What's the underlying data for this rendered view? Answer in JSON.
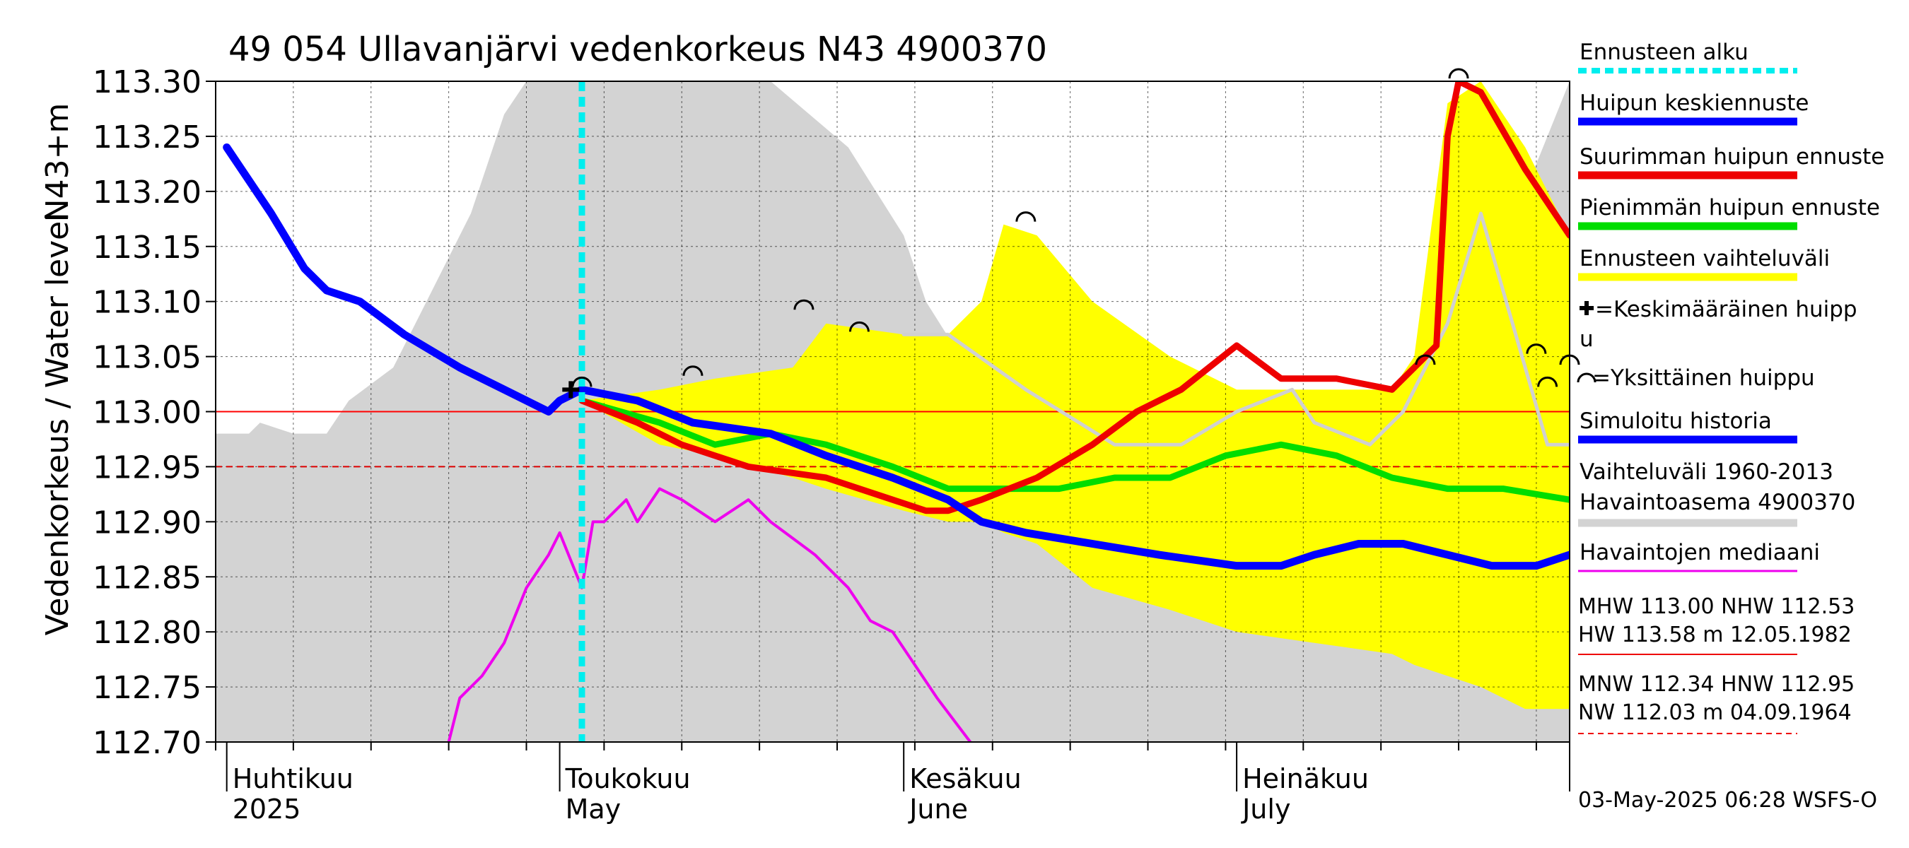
{
  "chart_data": {
    "type": "line",
    "title": "49 054 Ullavanjärvi vedenkorkeus N43 4900370",
    "ylabel": "Vedenkorkeus / Water level",
    "ylabel_unit": "N43+m",
    "ylim": [
      112.7,
      113.3
    ],
    "yticks": [
      "113.30",
      "113.25",
      "113.20",
      "113.15",
      "113.10",
      "113.05",
      "113.00",
      "112.95",
      "112.90",
      "112.85",
      "112.80",
      "112.75",
      "112.70"
    ],
    "ytick_values": [
      113.3,
      113.25,
      113.2,
      113.15,
      113.1,
      113.05,
      113.0,
      112.95,
      112.9,
      112.85,
      112.8,
      112.75,
      112.7
    ],
    "xlim": [
      "2025-04-01",
      "2025-07-31"
    ],
    "month_labels": [
      {
        "date": "2025-04-01",
        "fi": "Huhtikuu",
        "en": "2025"
      },
      {
        "date": "2025-05-01",
        "fi": "Toukokuu",
        "en": "May"
      },
      {
        "date": "2025-06-01",
        "fi": "Kesäkuu",
        "en": "June"
      },
      {
        "date": "2025-07-01",
        "fi": "Heinäkuu",
        "en": "July"
      }
    ],
    "grid": true,
    "legend_position": "right",
    "forecast_start": "2025-05-03",
    "reference_lines": [
      {
        "name": "MHW",
        "value": 113.0,
        "style": "solid",
        "color": "#ff0000"
      },
      {
        "name": "HNW",
        "value": 112.95,
        "style": "dashed",
        "color": "#dd0000"
      }
    ],
    "series": [
      {
        "name": "Vaihteluväli 1960-2013 Havaintoasema 4900370",
        "kind": "band",
        "color": "#d3d3d3",
        "x": [
          "2025-03-31",
          "2025-04-01",
          "2025-04-03",
          "2025-04-04",
          "2025-04-07",
          "2025-04-10",
          "2025-04-12",
          "2025-04-16",
          "2025-04-20",
          "2025-04-23",
          "2025-04-26",
          "2025-04-28",
          "2025-04-30",
          "2025-05-02",
          "2025-05-10",
          "2025-05-20",
          "2025-05-27",
          "2025-06-01",
          "2025-06-03",
          "2025-06-08",
          "2025-06-15",
          "2025-06-25",
          "2025-07-05",
          "2025-07-15",
          "2025-07-20",
          "2025-07-22",
          "2025-07-25",
          "2025-07-27",
          "2025-07-31"
        ],
        "y_high": [
          112.98,
          112.98,
          112.98,
          112.99,
          112.98,
          112.98,
          113.01,
          113.04,
          113.12,
          113.18,
          113.27,
          113.3,
          113.3,
          113.3,
          113.3,
          113.3,
          113.24,
          113.16,
          113.1,
          113.02,
          112.95,
          112.9,
          112.85,
          112.88,
          112.93,
          112.95,
          113.02,
          113.2,
          113.3
        ],
        "y_low": [
          112.7,
          112.7,
          112.7,
          112.7,
          112.7,
          112.7,
          112.7,
          112.7,
          112.7,
          112.7,
          112.7,
          112.7,
          112.7,
          112.7,
          112.7,
          112.7,
          112.7,
          112.7,
          112.7,
          112.7,
          112.7,
          112.7,
          112.7,
          112.7,
          112.7,
          112.7,
          112.7,
          112.7,
          112.7
        ]
      },
      {
        "name": "Ennusteen vaihteluväli",
        "kind": "band",
        "color": "#ffff00",
        "x": [
          "2025-05-03",
          "2025-05-10",
          "2025-05-15",
          "2025-05-22",
          "2025-05-25",
          "2025-06-01",
          "2025-06-05",
          "2025-06-08",
          "2025-06-10",
          "2025-06-13",
          "2025-06-18",
          "2025-06-25",
          "2025-07-01",
          "2025-07-08",
          "2025-07-15",
          "2025-07-17",
          "2025-07-20",
          "2025-07-23",
          "2025-07-27",
          "2025-07-31"
        ],
        "y_high": [
          113.01,
          113.02,
          113.03,
          113.04,
          113.08,
          113.07,
          113.07,
          113.1,
          113.17,
          113.16,
          113.1,
          113.05,
          113.02,
          113.02,
          113.02,
          113.05,
          113.28,
          113.3,
          113.24,
          113.16
        ],
        "y_low": [
          113.01,
          112.97,
          112.96,
          112.94,
          112.93,
          112.91,
          112.9,
          112.9,
          112.89,
          112.88,
          112.84,
          112.82,
          112.8,
          112.79,
          112.78,
          112.77,
          112.76,
          112.75,
          112.73,
          112.73
        ]
      },
      {
        "name": "Ennusteen mediaani (harmaa)",
        "kind": "line",
        "color": "#d0d0d0",
        "x": [
          "2025-06-01",
          "2025-06-05",
          "2025-06-12",
          "2025-06-20",
          "2025-06-26",
          "2025-07-01",
          "2025-07-06",
          "2025-07-08",
          "2025-07-13",
          "2025-07-16",
          "2025-07-20",
          "2025-07-23",
          "2025-07-29",
          "2025-07-31"
        ],
        "y": [
          113.07,
          113.07,
          113.02,
          112.97,
          112.97,
          113.0,
          113.02,
          112.99,
          112.97,
          113.0,
          113.08,
          113.18,
          112.97,
          112.97
        ]
      },
      {
        "name": "Havaintojen mediaani",
        "kind": "line",
        "color": "#ee00ee",
        "x": [
          "2025-04-21",
          "2025-04-22",
          "2025-04-24",
          "2025-04-26",
          "2025-04-28",
          "2025-04-30",
          "2025-05-01",
          "2025-05-03",
          "2025-05-04",
          "2025-05-05",
          "2025-05-07",
          "2025-05-08",
          "2025-05-10",
          "2025-05-12",
          "2025-05-15",
          "2025-05-18",
          "2025-05-20",
          "2025-05-24",
          "2025-05-27",
          "2025-05-29",
          "2025-05-31",
          "2025-06-02",
          "2025-06-04",
          "2025-06-07"
        ],
        "y": [
          112.7,
          112.74,
          112.76,
          112.79,
          112.84,
          112.87,
          112.89,
          112.84,
          112.9,
          112.9,
          112.92,
          112.9,
          112.93,
          112.92,
          112.9,
          112.92,
          112.9,
          112.87,
          112.84,
          112.81,
          112.8,
          112.77,
          112.74,
          112.7
        ]
      },
      {
        "name": "Pienimmän huipun ennuste",
        "kind": "line",
        "color": "#00dd00",
        "x": [
          "2025-05-03",
          "2025-05-10",
          "2025-05-15",
          "2025-05-20",
          "2025-05-25",
          "2025-05-31",
          "2025-06-05",
          "2025-06-10",
          "2025-06-15",
          "2025-06-20",
          "2025-06-25",
          "2025-06-30",
          "2025-07-05",
          "2025-07-10",
          "2025-07-15",
          "2025-07-20",
          "2025-07-25",
          "2025-07-31"
        ],
        "y": [
          113.01,
          112.99,
          112.97,
          112.98,
          112.97,
          112.95,
          112.93,
          112.93,
          112.93,
          112.94,
          112.94,
          112.96,
          112.97,
          112.96,
          112.94,
          112.93,
          112.93,
          112.92
        ]
      },
      {
        "name": "Suurimman huipun ennuste",
        "kind": "line",
        "color": "#ee0000",
        "x": [
          "2025-05-03",
          "2025-05-08",
          "2025-05-12",
          "2025-05-18",
          "2025-05-25",
          "2025-05-31",
          "2025-06-03",
          "2025-06-05",
          "2025-06-08",
          "2025-06-13",
          "2025-06-18",
          "2025-06-22",
          "2025-06-26",
          "2025-07-01",
          "2025-07-05",
          "2025-07-10",
          "2025-07-15",
          "2025-07-17",
          "2025-07-19",
          "2025-07-20",
          "2025-07-21",
          "2025-07-23",
          "2025-07-27",
          "2025-07-31"
        ],
        "y": [
          113.01,
          112.99,
          112.97,
          112.95,
          112.94,
          112.92,
          112.91,
          112.91,
          112.92,
          112.94,
          112.97,
          113.0,
          113.02,
          113.06,
          113.03,
          113.03,
          113.02,
          113.04,
          113.06,
          113.25,
          113.3,
          113.29,
          113.22,
          113.16
        ]
      },
      {
        "name": "Huipun keskiennuste",
        "kind": "line",
        "color": "#0000ff",
        "x": [
          "2025-05-03",
          "2025-05-08",
          "2025-05-13",
          "2025-05-20",
          "2025-05-25",
          "2025-05-31",
          "2025-06-05",
          "2025-06-08",
          "2025-06-12",
          "2025-06-18",
          "2025-06-24",
          "2025-07-01",
          "2025-07-05",
          "2025-07-08",
          "2025-07-12",
          "2025-07-16",
          "2025-07-20",
          "2025-07-24",
          "2025-07-28",
          "2025-07-31"
        ],
        "y": [
          113.02,
          113.01,
          112.99,
          112.98,
          112.96,
          112.94,
          112.92,
          112.9,
          112.89,
          112.88,
          112.87,
          112.86,
          112.86,
          112.87,
          112.88,
          112.88,
          112.87,
          112.86,
          112.86,
          112.87
        ]
      },
      {
        "name": "Simuloitu historia",
        "kind": "line",
        "color": "#0000ff",
        "x": [
          "2025-04-01",
          "2025-04-05",
          "2025-04-08",
          "2025-04-10",
          "2025-04-13",
          "2025-04-17",
          "2025-04-22",
          "2025-04-26",
          "2025-04-30",
          "2025-05-01",
          "2025-05-03"
        ],
        "y": [
          113.24,
          113.18,
          113.13,
          113.11,
          113.1,
          113.07,
          113.04,
          113.02,
          113.0,
          113.01,
          113.02
        ]
      }
    ],
    "peaks": {
      "mean_peak": {
        "x": "2025-05-02",
        "y": 113.02
      },
      "single_peaks": [
        {
          "x": "2025-05-03",
          "y": 113.02
        },
        {
          "x": "2025-05-13",
          "y": 113.03
        },
        {
          "x": "2025-05-23",
          "y": 113.09
        },
        {
          "x": "2025-05-28",
          "y": 113.07
        },
        {
          "x": "2025-06-12",
          "y": 113.17
        },
        {
          "x": "2025-07-18",
          "y": 113.04
        },
        {
          "x": "2025-07-21",
          "y": 113.3
        },
        {
          "x": "2025-07-28",
          "y": 113.05
        },
        {
          "x": "2025-07-29",
          "y": 113.02
        },
        {
          "x": "2025-07-31",
          "y": 113.04
        }
      ]
    }
  },
  "legend": [
    {
      "label": "Ennusteen alku",
      "color": "#00eeee",
      "style": "dotted"
    },
    {
      "label": "Huipun keskiennuste",
      "color": "#0000ff",
      "style": "thick"
    },
    {
      "label": "Suurimman huipun ennuste",
      "color": "#ee0000",
      "style": "thick"
    },
    {
      "label": "Pienimmän huipun ennuste",
      "color": "#00dd00",
      "style": "thick"
    },
    {
      "label": "Ennusteen vaihteluväli",
      "color": "#ffff00",
      "style": "thick"
    },
    {
      "label": "=Keskimääräinen huipp",
      "label2": "u",
      "style": "plus"
    },
    {
      "label": "=Yksittäinen huippu",
      "style": "arc"
    },
    {
      "label": "Simuloitu historia",
      "color": "#0000ff",
      "style": "thick"
    },
    {
      "label": "Vaihteluväli 1960-2013",
      "label2": " Havaintoasema 4900370",
      "color": "#d3d3d3",
      "style": "thick"
    },
    {
      "label": "Havaintojen mediaani",
      "color": "#ee00ee",
      "style": "thin"
    }
  ],
  "stats": {
    "line1": "MHW 113.00 NHW 112.53",
    "line2": "HW 113.58 m 12.05.1982",
    "line3": "MNW 112.34 HNW 112.95",
    "line4": "NW 112.03 m 04.09.1964"
  },
  "footer": "03-May-2025 06:28 WSFS-O"
}
